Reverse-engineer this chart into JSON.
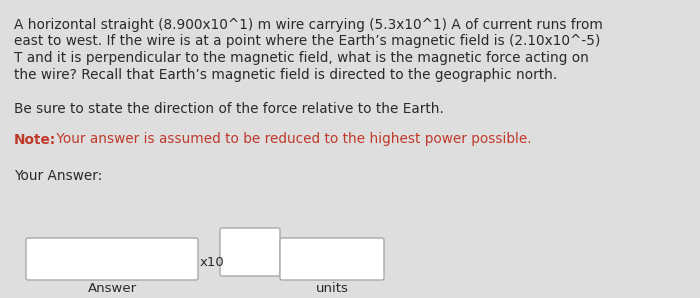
{
  "background_color": "#dedede",
  "paragraph1_line1": "A horizontal straight (8.900x10^1) m wire carrying (5.3x10^1) A of current runs from",
  "paragraph1_line2": "east to west. If the wire is at a point where the Earth’s magnetic field is (2.10x10^-5)",
  "paragraph1_line3": "T and it is perpendicular to the magnetic field, what is the magnetic force acting on",
  "paragraph1_line4": "the wire? Recall that Earth’s magnetic field is directed to the geographic north.",
  "paragraph2": "Be sure to state the direction of the force relative to the Earth.",
  "note_bold": "Note:",
  "note_rest": " Your answer is assumed to be reduced to the highest power possible.",
  "note_color": "#c0392b",
  "your_answer": "Your Answer:",
  "x10_label": "x10",
  "answer_label": "Answer",
  "units_label": "units",
  "text_color": "#2a2a2a",
  "font_size_main": 9.8,
  "font_size_small": 9.5
}
